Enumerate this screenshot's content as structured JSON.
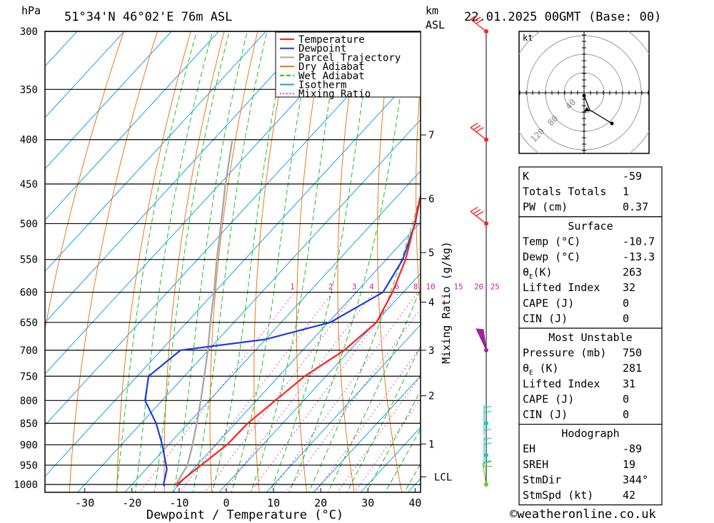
{
  "header": {
    "pressure_unit": "hPa",
    "location": "51°34'N 46°02'E 76m ASL",
    "km_label": "km",
    "asl_label": "ASL",
    "datetime": "22.01.2025 00GMT (Base: 00)"
  },
  "footer": {
    "xaxis_title": "Dewpoint / Temperature (°C)",
    "credit": "©weatheronline.co.uk"
  },
  "colors": {
    "temperature": "#ff2020",
    "dewpoint": "#1a3de0",
    "parcel": "#a8a8a8",
    "dry_adiabat": "#e87a1a",
    "wet_adiabat": "#22bb22",
    "isotherm": "#1aa0e8",
    "mixing_ratio": "#cc1f9a"
  },
  "chart_data": {
    "type": "line",
    "title": "51°34'N 46°02'E 76m ASL",
    "xlabel": "Dewpoint / Temperature (°C)",
    "ylabel": "hPa",
    "y2label": "km ASL",
    "mixing_label": "Mixing Ratio (g/kg)",
    "xlim": [
      -40,
      40
    ],
    "ylim": [
      1000,
      300
    ],
    "x_ticks": [
      -30,
      -20,
      -10,
      0,
      10,
      20,
      30,
      40
    ],
    "pressure_levels": [
      300,
      350,
      400,
      450,
      500,
      550,
      600,
      650,
      700,
      750,
      800,
      850,
      900,
      950,
      1000
    ],
    "km_ticks": [
      {
        "label": "7",
        "pressure": 395
      },
      {
        "label": "6",
        "pressure": 468
      },
      {
        "label": "5",
        "pressure": 540
      },
      {
        "label": "4",
        "pressure": 616
      },
      {
        "label": "3",
        "pressure": 700
      },
      {
        "label": "2",
        "pressure": 790
      },
      {
        "label": "1",
        "pressure": 898
      },
      {
        "label": "LCL",
        "pressure": 980
      }
    ],
    "mixing_ratio_labels": [
      "1",
      "2",
      "3",
      "4",
      "6",
      "8",
      "10",
      "15",
      "20",
      "25"
    ],
    "legend": [
      "Temperature",
      "Dewpoint",
      "Parcel Trajectory",
      "Dry Adiabat",
      "Wet Adiabat",
      "Isotherm",
      "Mixing Ratio"
    ],
    "series": [
      {
        "name": "Temperature",
        "points": [
          [
            1005,
            -10.0
          ],
          [
            1000,
            -10.5
          ],
          [
            970,
            -9.7
          ],
          [
            900,
            -7.6
          ],
          [
            850,
            -7.4
          ],
          [
            750,
            -4.5
          ],
          [
            700,
            -1.2
          ],
          [
            650,
            0.2
          ],
          [
            600,
            -2.3
          ],
          [
            550,
            -5.9
          ],
          [
            500,
            -11.0
          ],
          [
            450,
            -16.9
          ],
          [
            400,
            -24.3
          ],
          [
            350,
            -33.7
          ],
          [
            300,
            -44.3
          ]
        ]
      },
      {
        "name": "Dewpoint",
        "points": [
          [
            1005,
            -12.7
          ],
          [
            1000,
            -13.3
          ],
          [
            960,
            -15.6
          ],
          [
            900,
            -21.3
          ],
          [
            850,
            -26.8
          ],
          [
            800,
            -33.6
          ],
          [
            750,
            -37.6
          ],
          [
            700,
            -35.9
          ],
          [
            680,
            -20.0
          ],
          [
            650,
            -9.6
          ],
          [
            600,
            -4.3
          ],
          [
            550,
            -6.5
          ],
          [
            500,
            -10.9
          ],
          [
            450,
            -16.9
          ],
          [
            400,
            -24.3
          ],
          [
            350,
            -33.7
          ],
          [
            300,
            -44.3
          ]
        ]
      },
      {
        "name": "Parcel Trajectory",
        "points": [
          [
            1000,
            -10.7
          ],
          [
            950,
            -12.0
          ],
          [
            900,
            -14.9
          ],
          [
            850,
            -18.2
          ],
          [
            800,
            -21.8
          ],
          [
            750,
            -25.8
          ],
          [
            700,
            -30.1
          ],
          [
            650,
            -35.0
          ],
          [
            600,
            -40.1
          ],
          [
            550,
            -45.9
          ],
          [
            500,
            -52.0
          ],
          [
            450,
            -58.8
          ],
          [
            400,
            -66.0
          ]
        ]
      }
    ],
    "wind_barbs": [
      {
        "pressure": 300,
        "label": "red"
      },
      {
        "pressure": 400,
        "label": "red"
      },
      {
        "pressure": 500,
        "label": "red"
      },
      {
        "pressure": 700,
        "label": "purple"
      },
      {
        "pressure": 850,
        "label": "cyan"
      },
      {
        "pressure": 925,
        "label": "cyan"
      },
      {
        "pressure": 1000,
        "label": "green"
      }
    ]
  },
  "hodograph": {
    "unit": "kt",
    "ring_labels": [
      "40",
      "80",
      "120"
    ]
  },
  "indices_box": {
    "rows": [
      {
        "label": "K",
        "value": "-59"
      },
      {
        "label": "Totals Totals",
        "value": "1"
      },
      {
        "label": "PW (cm)",
        "value": "0.37"
      }
    ]
  },
  "surface_box": {
    "title": "Surface",
    "rows": [
      {
        "label": "Temp (°C)",
        "value": "-10.7"
      },
      {
        "label": "Dewp (°C)",
        "value": "-13.3"
      },
      {
        "label": "θE(K)",
        "value": "263"
      },
      {
        "label": "Lifted Index",
        "value": "32"
      },
      {
        "label": "CAPE (J)",
        "value": "0"
      },
      {
        "label": "CIN (J)",
        "value": "0"
      }
    ]
  },
  "unstable_box": {
    "title": "Most Unstable",
    "rows": [
      {
        "label": "Pressure (mb)",
        "value": "750"
      },
      {
        "label": "θE (K)",
        "value": "281"
      },
      {
        "label": "Lifted Index",
        "value": "31"
      },
      {
        "label": "CAPE (J)",
        "value": "0"
      },
      {
        "label": "CIN (J)",
        "value": "0"
      }
    ]
  },
  "hodo_box": {
    "title": "Hodograph",
    "rows": [
      {
        "label": "EH",
        "value": "-89"
      },
      {
        "label": "SREH",
        "value": "19"
      },
      {
        "label": "StmDir",
        "value": "344°"
      },
      {
        "label": "StmSpd (kt)",
        "value": "42"
      }
    ]
  }
}
